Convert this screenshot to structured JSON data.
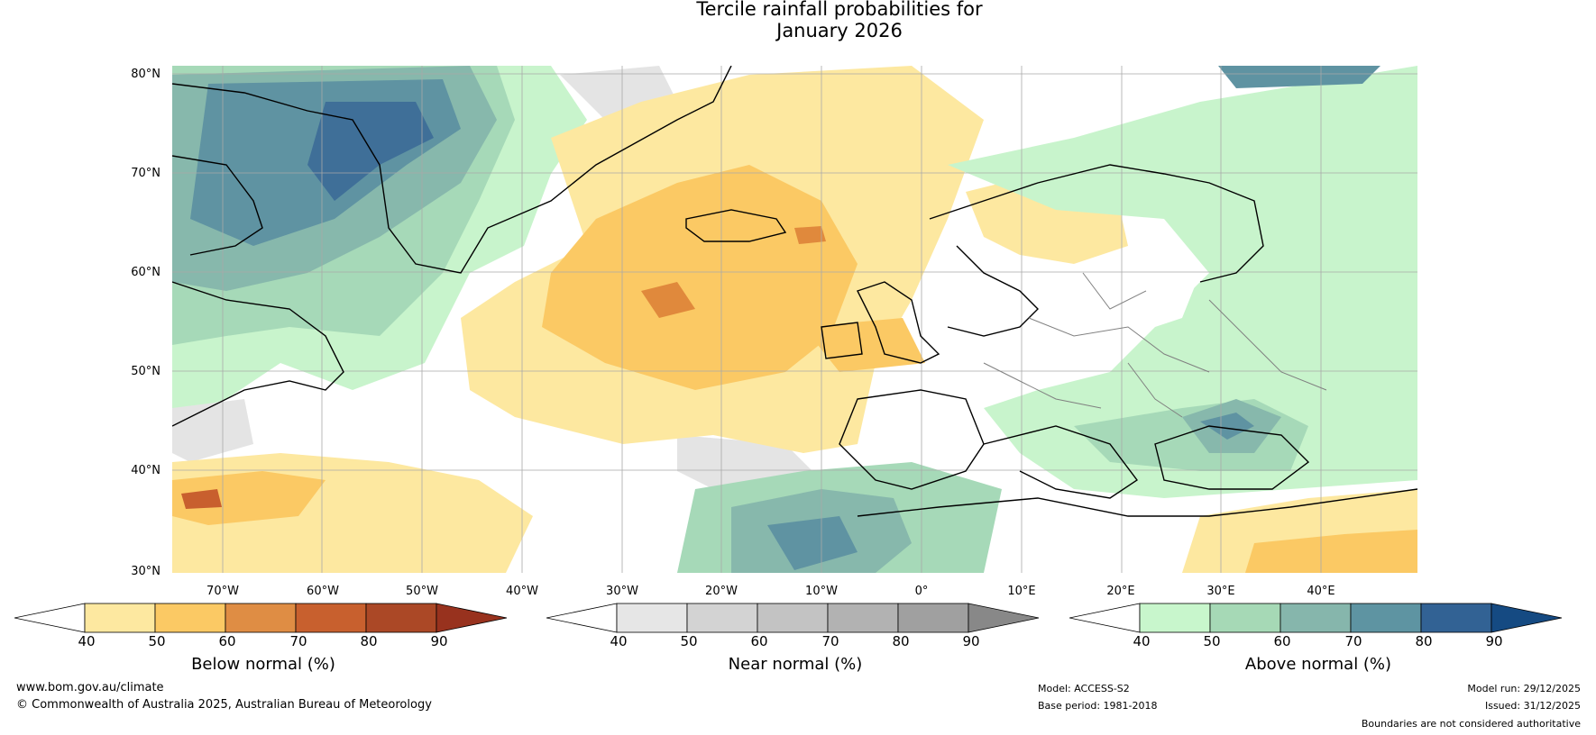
{
  "title": {
    "line1": "Tercile rainfall probabilities for",
    "line2": "January 2026"
  },
  "map": {
    "region": "North Atlantic and Europe",
    "lat_labels": [
      "80°N",
      "70°N",
      "60°N",
      "50°N",
      "40°N",
      "30°N"
    ],
    "lon_labels": [
      "70°W",
      "60°W",
      "50°W",
      "40°W",
      "30°W",
      "20°W",
      "10°W",
      "0°",
      "10°E",
      "20°E",
      "30°E",
      "40°E"
    ],
    "colors": {
      "ocean_base": "#ffffff",
      "below_40_50": "#fde8a0",
      "below_50_60": "#fbc964",
      "below_60_70": "#e0893c",
      "below_70_80": "#c85f2e",
      "near_40_50": "#e4e4e4",
      "above_40_50": "#c8f4cc",
      "above_50_60": "#a6d9b8",
      "above_60_70": "#87b8ac",
      "above_70_80": "#5f93a2",
      "above_80_90": "#3f6f98",
      "coastline": "#000000",
      "border": "#808080",
      "grid": "#a9a9a9"
    }
  },
  "legends": [
    {
      "title": "Below normal (%)",
      "ticks": [
        "40",
        "50",
        "60",
        "70",
        "80",
        "90"
      ],
      "colors": [
        "#ffffff",
        "#fde8a0",
        "#fbc964",
        "#df8d44",
        "#c8602e",
        "#ab4826",
        "#98321e"
      ]
    },
    {
      "title": "Near normal (%)",
      "ticks": [
        "40",
        "50",
        "60",
        "70",
        "80",
        "90"
      ],
      "colors": [
        "#ffffff",
        "#e6e6e6",
        "#d3d3d3",
        "#c3c3c3",
        "#b2b2b2",
        "#a0a0a0",
        "#888888"
      ]
    },
    {
      "title": "Above normal (%)",
      "ticks": [
        "40",
        "50",
        "60",
        "70",
        "80",
        "90"
      ],
      "colors": [
        "#ffffff",
        "#c8f6cc",
        "#a6d9b6",
        "#86b6ac",
        "#5e94a2",
        "#326294",
        "#154a82"
      ]
    }
  ],
  "footer": {
    "website": "www.bom.gov.au/climate",
    "copyright": "© Commonwealth of Australia 2025, Australian Bureau of Meteorology",
    "model": "Model: ACCESS-S2",
    "base_period": "Base period: 1981-2018",
    "model_run": "Model run: 29/12/2025",
    "issued": "Issued: 31/12/2025",
    "disclaimer": "Boundaries are not considered authoritative"
  }
}
